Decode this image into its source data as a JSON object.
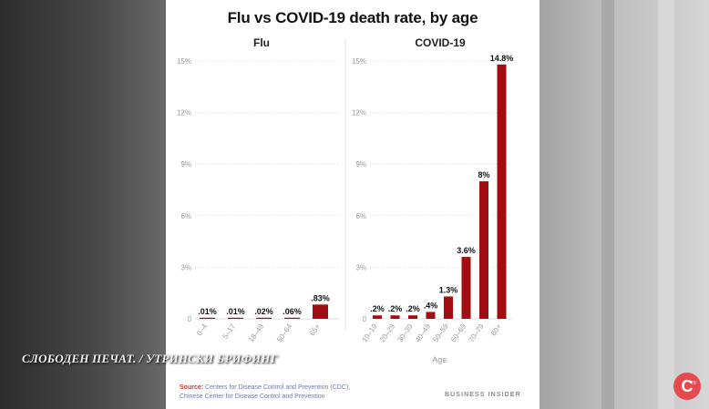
{
  "title": "Flu vs COVID-19 death rate, by age",
  "colors": {
    "bar": "#a30d12",
    "grid": "#dcdcdc",
    "tick": "#999999",
    "label": "#111111"
  },
  "chart_data": [
    {
      "type": "bar",
      "title": "Flu",
      "categories": [
        "0–4",
        "5–17",
        "18–49",
        "50–64",
        "65+"
      ],
      "values": [
        0.01,
        0.01,
        0.02,
        0.06,
        0.83
      ],
      "value_labels": [
        ".01%",
        ".01%",
        ".02%",
        ".06%",
        ".83%"
      ],
      "yticks": [
        "0",
        "3%",
        "6%",
        "9%",
        "12%",
        "15%"
      ],
      "ylim": [
        0,
        15
      ],
      "xlabel": "",
      "grid": true
    },
    {
      "type": "bar",
      "title": "COVID-19",
      "categories": [
        "10–19",
        "20–29",
        "30–39",
        "40–49",
        "50–59",
        "60–69",
        "70–79",
        "80+"
      ],
      "values": [
        0.2,
        0.2,
        0.2,
        0.4,
        1.3,
        3.6,
        8,
        14.8
      ],
      "value_labels": [
        ".2%",
        ".2%",
        ".2%",
        ".4%",
        "1.3%",
        "3.6%",
        "8%",
        "14.8%"
      ],
      "yticks": [
        "0",
        "3%",
        "6%",
        "9%",
        "12%",
        "15%"
      ],
      "ylim": [
        0,
        15
      ],
      "xlabel": "Age",
      "grid": true
    }
  ],
  "source": {
    "prefix": "Source:",
    "line1": "Centers for Disease Control and Prevention (CDC),",
    "line2": "Chinese Center for Disease Control and Prevention"
  },
  "brand": "BUSINESS INSIDER",
  "watermark": "СЛОБОДЕН ПЕЧАТ. / УТРИНСКИ БРИФИНГ",
  "logo": {
    "letter": "C",
    "superscript": "ТВ"
  }
}
